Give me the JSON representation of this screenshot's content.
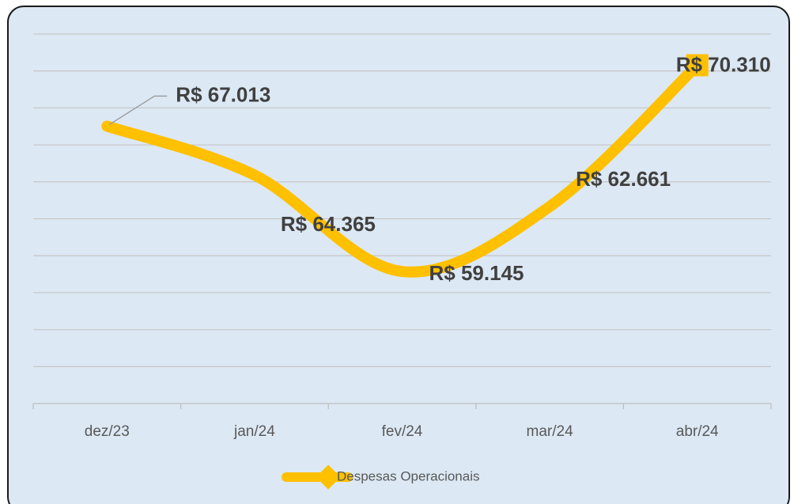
{
  "chart_data": {
    "type": "line",
    "categories": [
      "dez/23",
      "jan/24",
      "fev/24",
      "mar/24",
      "abr/24"
    ],
    "series": [
      {
        "name": "Despesas Operacionais",
        "color": "#FFC000",
        "values": [
          67013,
          64365,
          59145,
          62661,
          70310
        ],
        "value_labels": [
          "R$ 67.013",
          "R$ 64.365",
          "R$ 59.145",
          "R$ 62.661",
          "R$ 70.310"
        ]
      }
    ],
    "ylim": [
      52000,
      72000
    ],
    "yticks": [
      52000,
      54000,
      56000,
      58000,
      60000,
      62000,
      64000,
      66000,
      68000,
      70000,
      72000
    ],
    "grid": true,
    "smooth": true,
    "legend": "bottom"
  }
}
